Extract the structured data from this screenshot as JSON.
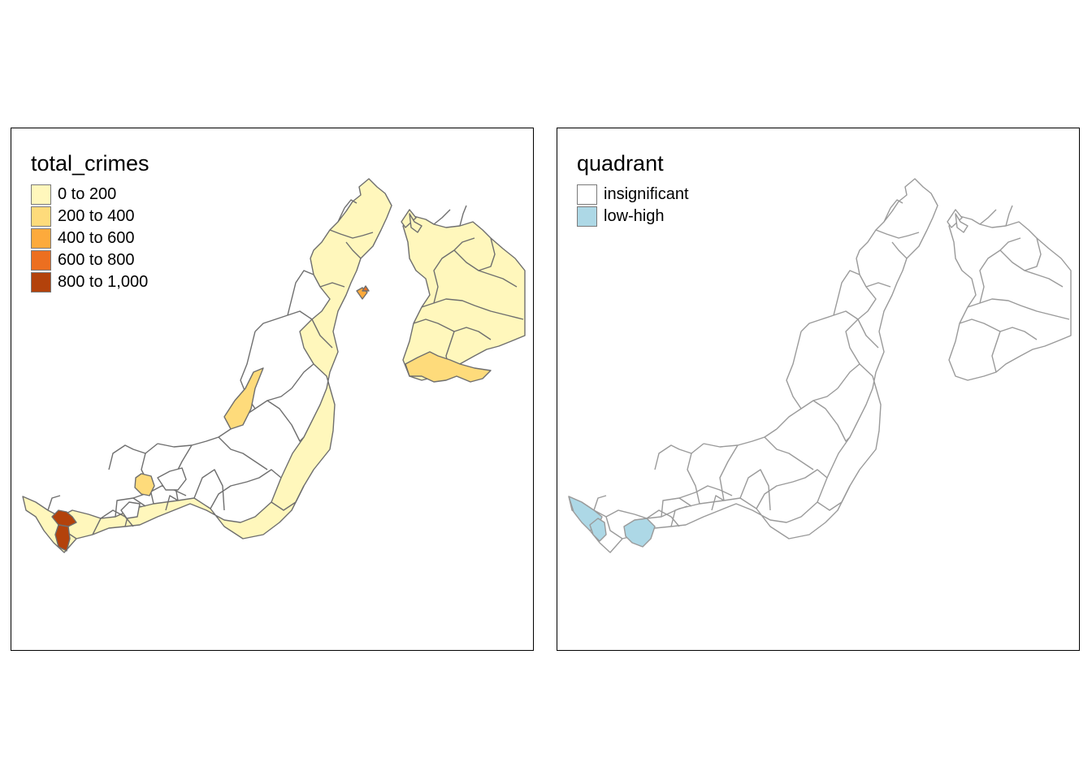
{
  "maps": [
    {
      "legend": {
        "title": "total_crimes",
        "items": [
          {
            "label": "0 to 200",
            "color": "#FFF7BC"
          },
          {
            "label": "200 to 400",
            "color": "#FEDB7B"
          },
          {
            "label": "400 to 600",
            "color": "#FDAA3C"
          },
          {
            "label": "600 to 800",
            "color": "#EC6F20"
          },
          {
            "label": "800 to 1,000",
            "color": "#B3420B"
          }
        ]
      },
      "border_color": "#6E6E6E"
    },
    {
      "legend": {
        "title": "quadrant",
        "items": [
          {
            "label": "insignificant",
            "color": "#FFFFFF"
          },
          {
            "label": "low-high",
            "color": "#ADD8E6"
          }
        ]
      },
      "border_color": "#9A9A9A"
    }
  ]
}
